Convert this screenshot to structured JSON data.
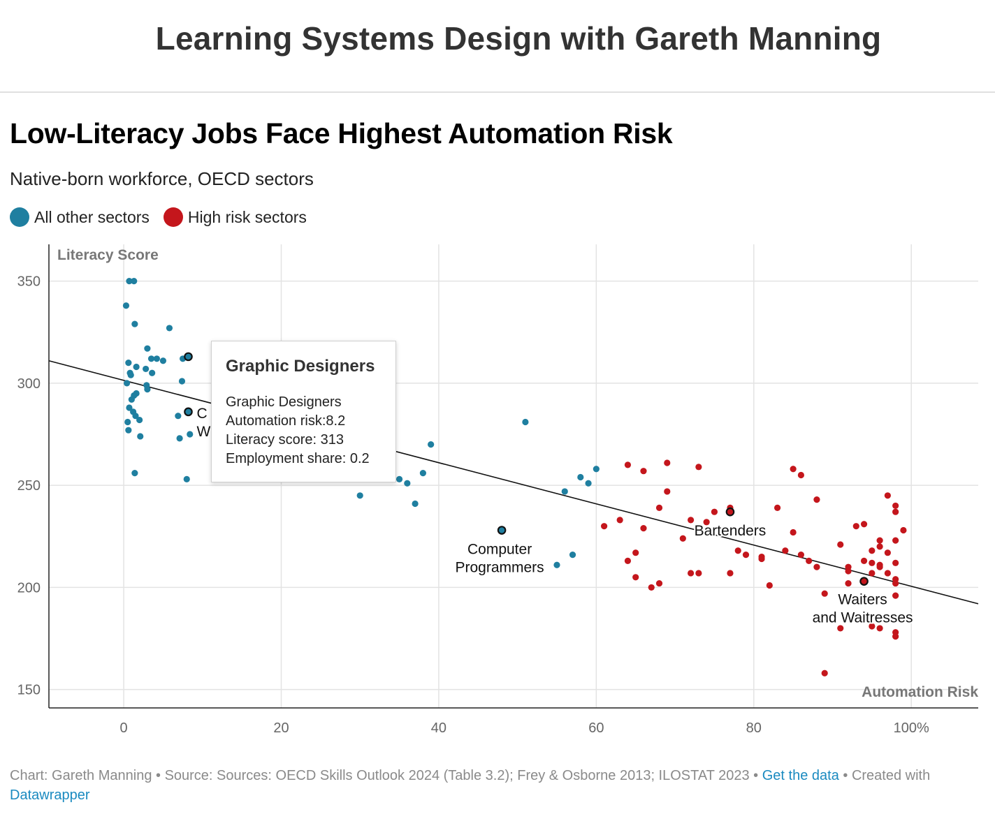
{
  "header": {
    "site_title": "Learning Systems Design with Gareth Manning"
  },
  "chart": {
    "title": "Low-Literacy Jobs Face Highest Automation Risk",
    "subtitle": "Native-born workforce, OECD sectors",
    "legend": [
      {
        "label": "All other sectors",
        "color": "#1f7fa0"
      },
      {
        "label": "High risk sectors",
        "color": "#c4161c"
      }
    ]
  },
  "tooltip": {
    "title": "Graphic Designers",
    "name": "Graphic Designers",
    "risk": "Automation risk:8.2",
    "literacy": "Literacy score: 313",
    "share": "Employment share: 0.2"
  },
  "footer": {
    "chart_by": "Chart: Gareth Manning",
    "sep1": " • ",
    "source": "Source: Sources: OECD Skills Outlook 2024 (Table 3.2); Frey & Osborne 2013; ILOSTAT 2023",
    "sep2": " • ",
    "get_data": "Get the data",
    "created": " • Created with ",
    "datawrapper": "Datawrapper"
  },
  "chart_data": {
    "type": "scatter",
    "ylabel": "Literacy Score",
    "xlabel": "Automation Risk",
    "xlim": [
      -9.5,
      108.5
    ],
    "ylim": [
      141,
      368
    ],
    "x_ticks": [
      0,
      20,
      40,
      60,
      80,
      100
    ],
    "x_tick_labels": [
      "0",
      "20",
      "40",
      "60",
      "80",
      "100%"
    ],
    "y_ticks": [
      150,
      200,
      250,
      300,
      350
    ],
    "y_tick_labels": [
      "150",
      "200",
      "250",
      "300",
      "350"
    ],
    "grid": true,
    "legend_position": "top-left",
    "trendline": {
      "x": [
        -9.5,
        108.5
      ],
      "y": [
        311,
        192
      ]
    },
    "series": [
      {
        "name": "All other sectors",
        "color": "#1f7fa0",
        "points": [
          [
            0.7,
            350
          ],
          [
            1.3,
            350
          ],
          [
            0.3,
            338
          ],
          [
            1.4,
            329
          ],
          [
            5.8,
            327
          ],
          [
            3.0,
            317
          ],
          [
            3.5,
            312
          ],
          [
            4.2,
            312
          ],
          [
            5.0,
            311
          ],
          [
            7.5,
            312
          ],
          [
            8.2,
            313
          ],
          [
            0.6,
            310
          ],
          [
            1.6,
            308
          ],
          [
            2.8,
            307
          ],
          [
            3.6,
            305
          ],
          [
            0.8,
            305
          ],
          [
            0.9,
            304
          ],
          [
            0.4,
            300
          ],
          [
            7.4,
            301
          ],
          [
            2.9,
            299
          ],
          [
            3.0,
            297
          ],
          [
            1.6,
            295
          ],
          [
            1.3,
            294
          ],
          [
            1.0,
            292
          ],
          [
            0.7,
            288
          ],
          [
            1.2,
            286
          ],
          [
            1.5,
            284
          ],
          [
            8.2,
            286
          ],
          [
            6.9,
            284
          ],
          [
            2.0,
            282
          ],
          [
            0.5,
            281
          ],
          [
            0.6,
            277
          ],
          [
            8.4,
            275
          ],
          [
            2.1,
            274
          ],
          [
            7.1,
            273
          ],
          [
            1.4,
            256
          ],
          [
            8.0,
            253
          ],
          [
            30.0,
            245
          ],
          [
            35.0,
            253
          ],
          [
            36.0,
            251
          ],
          [
            37.0,
            241
          ],
          [
            38.0,
            256
          ],
          [
            39.0,
            270
          ],
          [
            51.0,
            281
          ],
          [
            56.0,
            247
          ],
          [
            58.0,
            254
          ],
          [
            59.0,
            251
          ],
          [
            60.0,
            258
          ],
          [
            48.0,
            228
          ],
          [
            57.0,
            216
          ],
          [
            55.0,
            211
          ]
        ]
      },
      {
        "name": "High risk sectors",
        "color": "#c4161c",
        "points": [
          [
            64,
            260
          ],
          [
            66,
            257
          ],
          [
            69,
            261
          ],
          [
            73,
            259
          ],
          [
            85,
            258
          ],
          [
            86,
            255
          ],
          [
            69,
            247
          ],
          [
            68,
            239
          ],
          [
            77,
            239
          ],
          [
            83,
            239
          ],
          [
            88,
            243
          ],
          [
            97,
            245
          ],
          [
            98,
            240
          ],
          [
            98,
            237
          ],
          [
            63,
            233
          ],
          [
            72,
            233
          ],
          [
            74,
            232
          ],
          [
            75,
            237
          ],
          [
            61,
            230
          ],
          [
            66,
            229
          ],
          [
            77,
            237
          ],
          [
            85,
            227
          ],
          [
            93,
            230
          ],
          [
            94,
            231
          ],
          [
            99,
            228
          ],
          [
            71,
            224
          ],
          [
            91,
            221
          ],
          [
            96,
            223
          ],
          [
            96,
            220
          ],
          [
            98,
            223
          ],
          [
            78,
            218
          ],
          [
            79,
            216
          ],
          [
            81,
            215
          ],
          [
            81,
            214
          ],
          [
            84,
            218
          ],
          [
            86,
            216
          ],
          [
            87,
            213
          ],
          [
            88,
            210
          ],
          [
            92,
            210
          ],
          [
            92,
            208
          ],
          [
            94,
            213
          ],
          [
            95,
            218
          ],
          [
            95,
            212
          ],
          [
            96,
            211
          ],
          [
            96,
            210
          ],
          [
            97,
            217
          ],
          [
            98,
            212
          ],
          [
            65,
            217
          ],
          [
            64,
            213
          ],
          [
            65,
            205
          ],
          [
            67,
            200
          ],
          [
            68,
            202
          ],
          [
            72,
            207
          ],
          [
            73,
            207
          ],
          [
            77,
            207
          ],
          [
            82,
            201
          ],
          [
            89,
            197
          ],
          [
            92,
            202
          ],
          [
            94,
            203
          ],
          [
            95,
            207
          ],
          [
            97,
            207
          ],
          [
            98,
            204
          ],
          [
            98,
            202
          ],
          [
            98,
            196
          ],
          [
            91,
            180
          ],
          [
            95,
            181
          ],
          [
            96,
            180
          ],
          [
            98,
            178
          ],
          [
            98,
            176
          ],
          [
            89,
            158
          ]
        ]
      }
    ],
    "annotations": [
      {
        "label": "Computer Programmers",
        "lines": [
          "Computer",
          "Programmers"
        ],
        "x": 48,
        "y": 228
      },
      {
        "label": "Bartenders",
        "lines": [
          "Bartenders"
        ],
        "x": 77,
        "y": 237
      },
      {
        "label": "Waiters and Waitresses",
        "lines": [
          "Waiters",
          "and Waitresses"
        ],
        "x": 94,
        "y": 203
      },
      {
        "label": "C W",
        "lines": [
          "C",
          "W"
        ],
        "x": 8.2,
        "y": 286
      }
    ],
    "highlighted": [
      {
        "x": 8.2,
        "y": 313,
        "series": 0
      },
      {
        "x": 8.2,
        "y": 286,
        "series": 0
      },
      {
        "x": 48,
        "y": 228,
        "series": 0
      },
      {
        "x": 77,
        "y": 237,
        "series": 1
      },
      {
        "x": 94,
        "y": 203,
        "series": 1
      }
    ]
  }
}
